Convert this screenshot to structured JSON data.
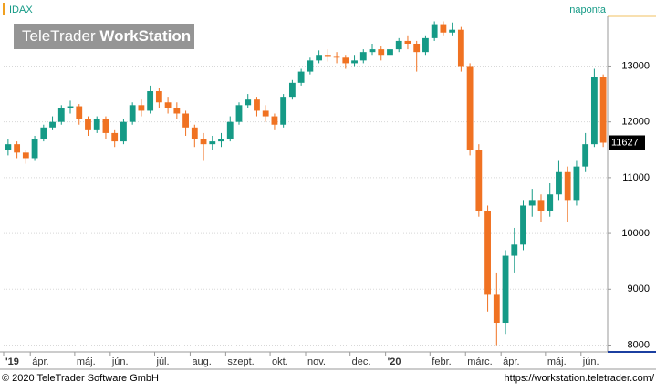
{
  "chart_data": {
    "type": "candlestick",
    "title": "IDAX",
    "subtitle": "naponta",
    "brand": {
      "name": "TeleTrader",
      "product": "WorkStation"
    },
    "footer": {
      "left": "© 2020 TeleTrader Software GmbH",
      "right": "https://workstation.teletrader.com/"
    },
    "categories": [
      "'19",
      null,
      null,
      "ápr.",
      null,
      null,
      null,
      null,
      "máj.",
      null,
      null,
      null,
      "jún.",
      null,
      null,
      null,
      null,
      "júl.",
      null,
      null,
      null,
      "aug.",
      null,
      null,
      null,
      "szept.",
      null,
      null,
      null,
      null,
      "okt.",
      null,
      null,
      null,
      "nov.",
      null,
      null,
      null,
      null,
      "dec.",
      null,
      null,
      null,
      "'20",
      null,
      null,
      null,
      null,
      "febr.",
      null,
      null,
      null,
      "márc.",
      null,
      null,
      null,
      "ápr.",
      null,
      null,
      null,
      null,
      "máj.",
      null,
      null,
      null,
      "jún.",
      null,
      null
    ],
    "open": [
      11500,
      11600,
      11450,
      11350,
      11700,
      11900,
      12000,
      12250,
      12280,
      12050,
      11850,
      12050,
      11800,
      11650,
      12000,
      12300,
      12200,
      12550,
      12350,
      12250,
      12150,
      11900,
      11700,
      11600,
      11650,
      11700,
      12000,
      12300,
      12400,
      12200,
      12100,
      11950,
      12450,
      12700,
      12900,
      13100,
      13200,
      13180,
      13150,
      13050,
      13100,
      13250,
      13300,
      13200,
      13300,
      13450,
      13400,
      13250,
      13500,
      13750,
      13600,
      13650,
      13000,
      11500,
      10400,
      8900,
      8400,
      9600,
      9800,
      10500,
      10600,
      10400,
      10700,
      11100,
      10600,
      11200,
      11600,
      12800
    ],
    "high": [
      11700,
      11650,
      11500,
      11750,
      11950,
      12100,
      12300,
      12380,
      12320,
      12100,
      12100,
      12100,
      11850,
      12050,
      12350,
      12400,
      12650,
      12600,
      12450,
      12350,
      12200,
      11950,
      11800,
      11750,
      11800,
      12100,
      12350,
      12500,
      12450,
      12300,
      12150,
      12500,
      12750,
      12950,
      13150,
      13280,
      13300,
      13250,
      13200,
      13200,
      13300,
      13400,
      13350,
      13400,
      13500,
      13550,
      13450,
      13550,
      13800,
      13800,
      13780,
      13700,
      13050,
      11600,
      10500,
      9300,
      9700,
      10100,
      10600,
      10800,
      10700,
      10900,
      11300,
      11200,
      11300,
      11800,
      12950,
      12850
    ],
    "low": [
      11400,
      11350,
      11250,
      11300,
      11650,
      11850,
      11950,
      12150,
      11950,
      11750,
      11800,
      11700,
      11550,
      11600,
      11950,
      12100,
      12150,
      12250,
      12150,
      12050,
      11750,
      11550,
      11300,
      11500,
      11550,
      11650,
      11950,
      12250,
      12100,
      12000,
      11850,
      11900,
      12400,
      12650,
      12850,
      13050,
      13080,
      13050,
      12950,
      13000,
      13050,
      13200,
      13100,
      13150,
      13250,
      13300,
      12900,
      13200,
      13450,
      13550,
      13550,
      12900,
      11400,
      10300,
      8600,
      8000,
      8200,
      9300,
      9700,
      10300,
      10200,
      10300,
      10600,
      10200,
      10500,
      11100,
      11550,
      11550
    ],
    "close": [
      11600,
      11450,
      11350,
      11700,
      11900,
      12000,
      12250,
      12280,
      12050,
      11850,
      12050,
      11800,
      11650,
      12000,
      12300,
      12200,
      12550,
      12350,
      12250,
      12150,
      11900,
      11700,
      11600,
      11650,
      11700,
      12000,
      12300,
      12400,
      12200,
      12100,
      11950,
      12450,
      12700,
      12900,
      13100,
      13200,
      13180,
      13150,
      13050,
      13100,
      13250,
      13300,
      13200,
      13300,
      13450,
      13400,
      13250,
      13500,
      13750,
      13600,
      13650,
      13000,
      11500,
      10400,
      8900,
      8400,
      9600,
      9800,
      10500,
      10600,
      10400,
      10700,
      11100,
      10600,
      11200,
      11600,
      12800,
      11627
    ],
    "up_color": "#159a86",
    "down_color": "#f07222",
    "ylim": [
      7910,
      13890
    ],
    "yticks": [
      8000,
      9000,
      10000,
      11000,
      12000,
      13000
    ],
    "grid": true
  }
}
